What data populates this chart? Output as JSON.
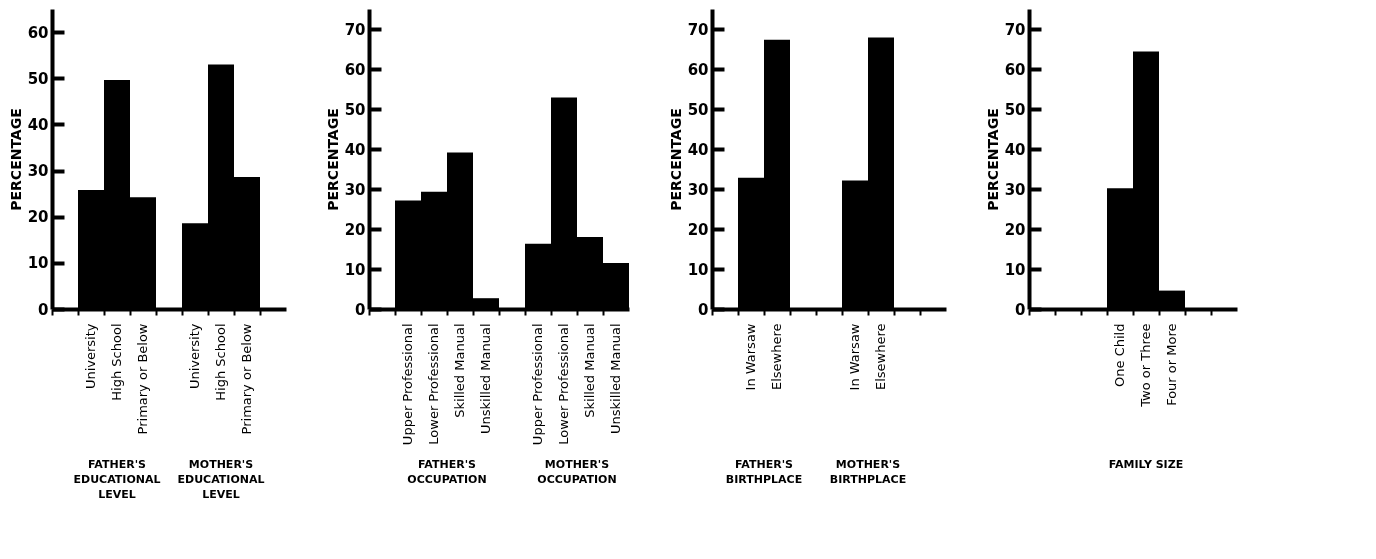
{
  "chart_data": [
    {
      "type": "bar",
      "ylabel": "PERCENTAGE",
      "color": "#000000",
      "ylim": [
        0,
        65
      ],
      "yticks": [
        0,
        10,
        20,
        30,
        40,
        50,
        60
      ],
      "categories": [
        null,
        "University",
        "High School",
        "Primary or Below",
        null,
        "University",
        "High School",
        "Primary or Below",
        null
      ],
      "values": [
        null,
        25.8,
        49.6,
        24.2,
        null,
        18.6,
        53,
        28.6,
        null
      ],
      "annotations": [
        "FATHER'S\nEDUCATIONAL\nLEVEL",
        "MOTHER'S\nEDUCATIONAL\nLEVEL"
      ]
    },
    {
      "type": "bar",
      "ylabel": "PERCENTAGE",
      "color": "#000000",
      "ylim": [
        0,
        75
      ],
      "yticks": [
        0,
        10,
        20,
        30,
        40,
        50,
        60,
        70
      ],
      "categories": [
        null,
        "Upper Professional",
        "Lower Professional",
        "Skilled Manual",
        "Unskilled Manual",
        null,
        "Upper Professional",
        "Lower Professional",
        "Skilled Manual",
        "Unskilled Manual"
      ],
      "values": [
        null,
        27.1,
        29.3,
        39.1,
        2.7,
        null,
        16.3,
        52.9,
        18,
        11.5
      ],
      "annotations": [
        "FATHER'S\nOCCUPATION",
        "MOTHER'S\nOCCUPATION"
      ]
    },
    {
      "type": "bar",
      "ylabel": "PERCENTAGE",
      "color": "#000000",
      "ylim": [
        0,
        75
      ],
      "yticks": [
        0,
        10,
        20,
        30,
        40,
        50,
        60,
        70
      ],
      "categories": [
        null,
        "In Warsaw",
        "Elsewhere",
        null,
        null,
        "In Warsaw",
        "Elsewhere",
        null,
        null
      ],
      "values": [
        null,
        32.8,
        67.3,
        null,
        null,
        32.1,
        67.9,
        null,
        null
      ],
      "annotations": [
        "FATHER'S\nBIRTHPLACE",
        "MOTHER'S\nBIRTHPLACE"
      ]
    },
    {
      "type": "bar",
      "ylabel": "PERCENTAGE",
      "color": "#000000",
      "ylim": [
        0,
        75
      ],
      "yticks": [
        0,
        10,
        20,
        30,
        40,
        50,
        60,
        70
      ],
      "categories": [
        null,
        null,
        null,
        "One Child",
        "Two or Three",
        "Four or More",
        null,
        null
      ],
      "values": [
        null,
        null,
        null,
        30.2,
        64.4,
        4.6,
        null,
        null
      ],
      "annotations": [
        "FAMILY SIZE"
      ]
    }
  ]
}
